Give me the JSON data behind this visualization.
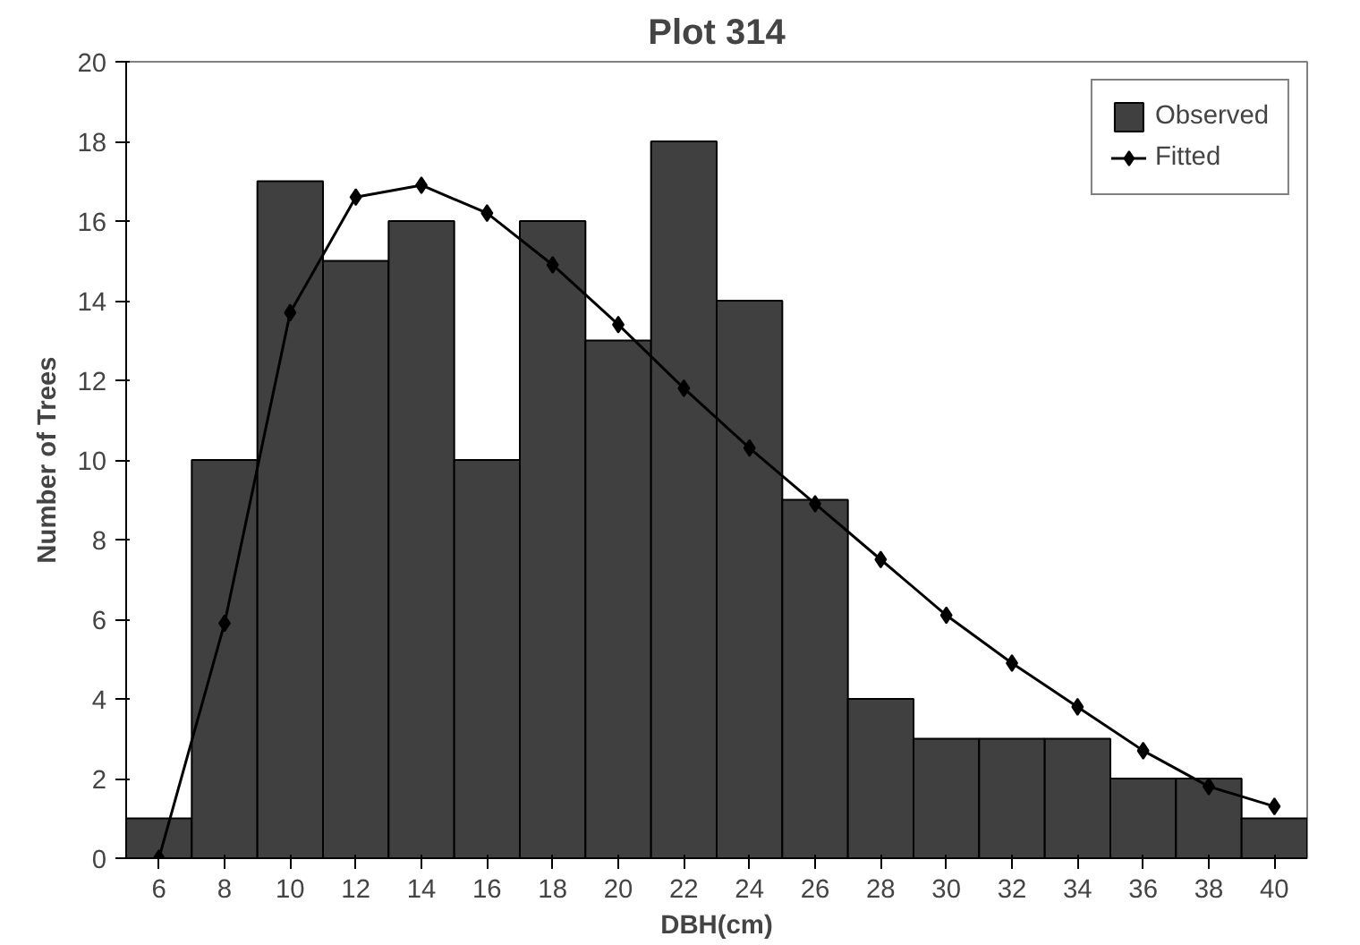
{
  "chart_data": {
    "type": "bar",
    "title": "Plot 314",
    "xlabel": "DBH(cm)",
    "ylabel": "Number of Trees",
    "categories": [
      "6",
      "8",
      "10",
      "12",
      "14",
      "16",
      "18",
      "20",
      "22",
      "24",
      "26",
      "28",
      "30",
      "32",
      "34",
      "36",
      "38",
      "40"
    ],
    "series": [
      {
        "name": "Observed",
        "color": "#404040",
        "values": [
          1,
          10,
          17,
          15,
          16,
          10,
          16,
          13,
          18,
          14,
          9,
          4,
          3,
          3,
          3,
          2,
          2,
          1
        ]
      },
      {
        "name": "Fitted",
        "type": "line",
        "color": "#000000",
        "marker": "diamond",
        "values": [
          0,
          5.9,
          13.7,
          16.6,
          16.9,
          16.2,
          14.9,
          13.4,
          11.8,
          10.3,
          8.9,
          7.5,
          6.1,
          4.9,
          3.8,
          2.7,
          1.8,
          1.3
        ]
      }
    ],
    "ylim": [
      0,
      20
    ],
    "yticks": [
      0,
      2,
      4,
      6,
      8,
      10,
      12,
      14,
      16,
      18,
      20
    ],
    "grid": false,
    "legend": "top right"
  }
}
